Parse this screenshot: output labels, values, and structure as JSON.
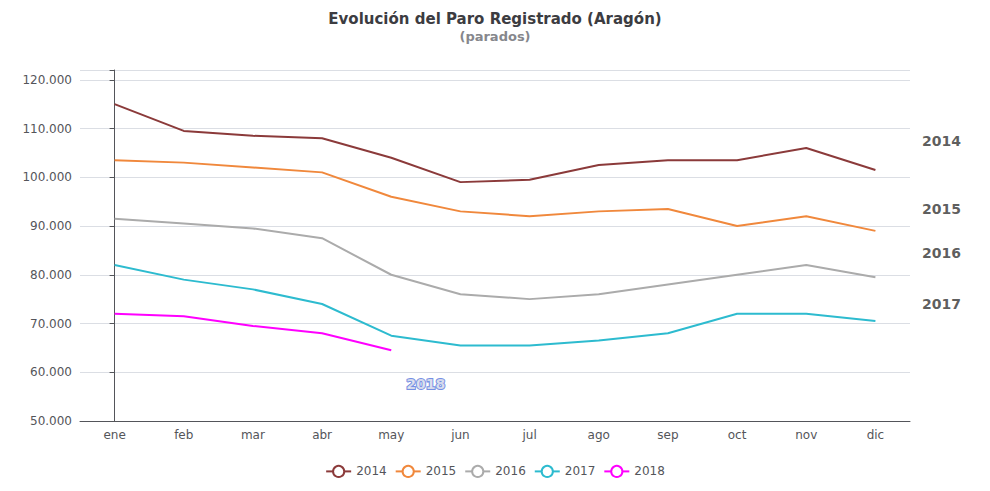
{
  "chart_data": {
    "type": "line",
    "title": "Evolución del Paro Registrado (Aragón)",
    "subtitle": "(parados)",
    "categories": [
      "ene",
      "feb",
      "mar",
      "abr",
      "may",
      "jun",
      "jul",
      "ago",
      "sep",
      "oct",
      "nov",
      "dic"
    ],
    "series": [
      {
        "name": "2014",
        "color": "#8B3A3A",
        "values": [
          115000,
          109500,
          108500,
          108000,
          104000,
          99000,
          99500,
          102500,
          103500,
          103500,
          106000,
          101500
        ]
      },
      {
        "name": "2015",
        "color": "#F0883C",
        "values": [
          103500,
          103000,
          102000,
          101000,
          96000,
          93000,
          92000,
          93000,
          93500,
          90000,
          92000,
          89000
        ]
      },
      {
        "name": "2016",
        "color": "#ABABAB",
        "values": [
          91500,
          90500,
          89500,
          87500,
          80000,
          76000,
          75000,
          76000,
          78000,
          80000,
          82000,
          79500
        ]
      },
      {
        "name": "2017",
        "color": "#2DBBCF",
        "values": [
          82000,
          79000,
          77000,
          74000,
          67500,
          65500,
          65500,
          66500,
          68000,
          72000,
          72000,
          70500
        ]
      },
      {
        "name": "2018",
        "color": "#FF00FF",
        "values": [
          72000,
          71500,
          69500,
          68000,
          64500,
          null,
          null,
          null,
          null,
          null,
          null,
          null
        ]
      }
    ],
    "annotations": [
      {
        "text": "2014",
        "y": 107500
      },
      {
        "text": "2015",
        "y": 93500
      },
      {
        "text": "2016",
        "y": 84500
      },
      {
        "text": "2017",
        "y": 74000
      },
      {
        "text": "2018",
        "x": 4.5,
        "y": 57500
      }
    ],
    "ylim": [
      50000,
      122000
    ],
    "yticks": [
      {
        "value": 50000,
        "label": "50.000"
      },
      {
        "value": 60000,
        "label": "60.000"
      },
      {
        "value": 70000,
        "label": "70.000"
      },
      {
        "value": 80000,
        "label": "80.000"
      },
      {
        "value": 90000,
        "label": "90.000"
      },
      {
        "value": 100000,
        "label": "100.000"
      },
      {
        "value": 110000,
        "label": "110.000"
      },
      {
        "value": 120000,
        "label": "120.000"
      }
    ],
    "grid": true,
    "legend": "bottom"
  }
}
